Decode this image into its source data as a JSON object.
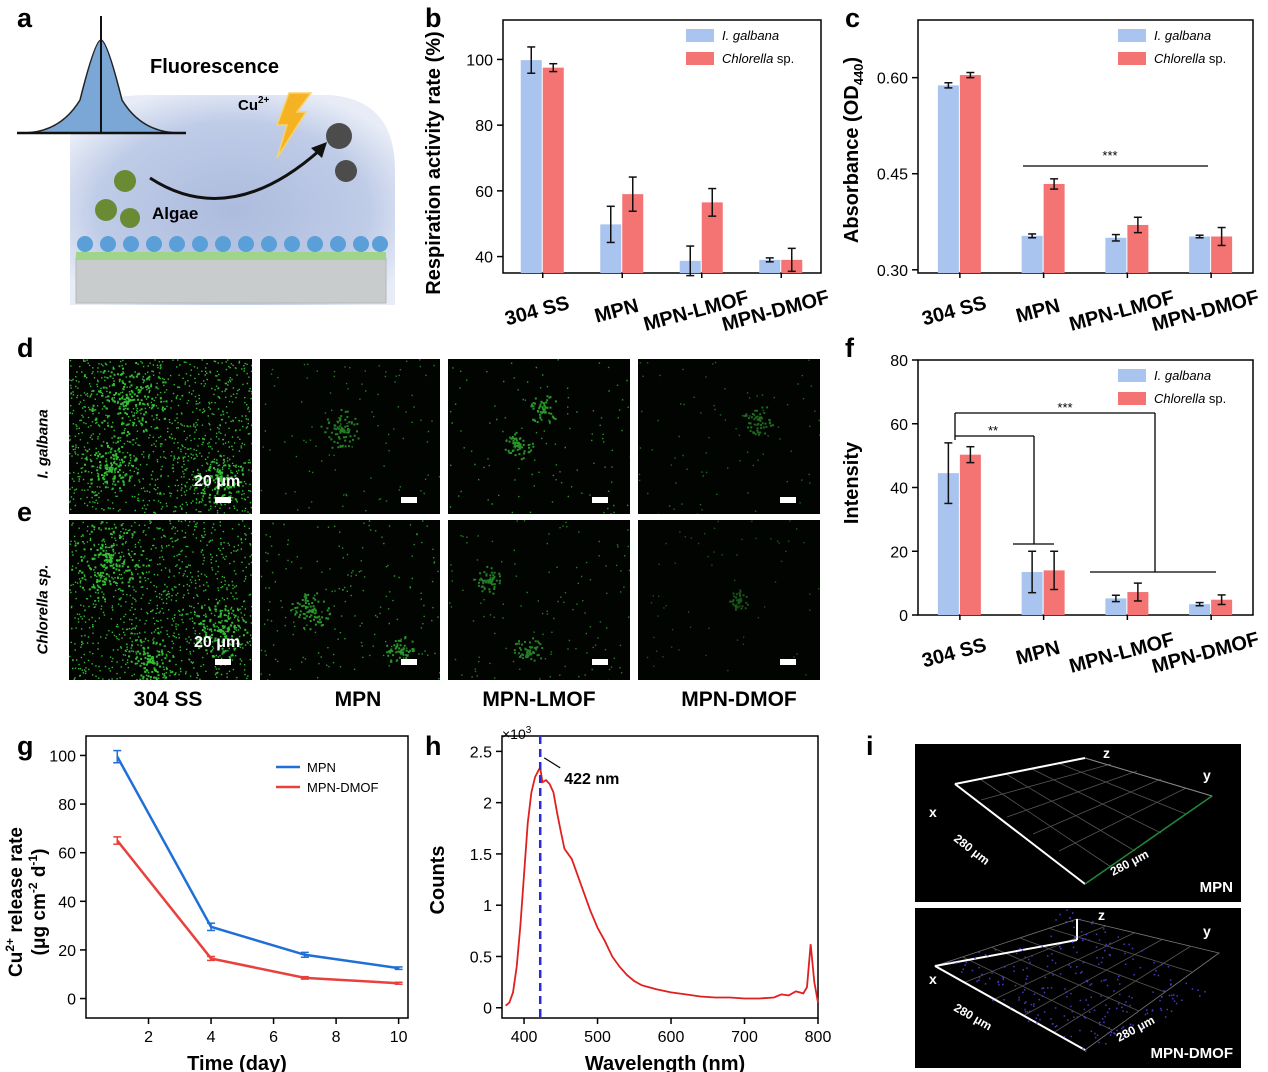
{
  "panel_labels": {
    "a": "a",
    "b": "b",
    "c": "c",
    "d": "d",
    "e": "e",
    "f": "f",
    "g": "g",
    "h": "h",
    "i": "i"
  },
  "schematic": {
    "fluorescence": "Fluorescence",
    "ion_base": "Cu",
    "ion_sup": "2+",
    "algae": "Algae"
  },
  "micrographs": {
    "rows": [
      "I. galbana",
      "Chlorella sp."
    ],
    "columns": [
      "304 SS",
      "MPN",
      "MPN-LMOF",
      "MPN-DMOF"
    ],
    "scale_text": "20 μm"
  },
  "confocal": {
    "top_tag": "MPN",
    "bottom_tag": "MPN-DMOF",
    "axis_z": "z",
    "axis_y": "y",
    "axis_x": "x",
    "dim_left": "280 μm",
    "dim_right": "280 μm"
  },
  "colors": {
    "blue_bar": "#a9c4ee",
    "red_bar": "#f47474",
    "mpn_line": "#1f6fd6",
    "dmof_line": "#e8413d",
    "spectrum": "#e01f1f",
    "marker": "#2b2bd6",
    "green_cells": "#39d23a",
    "purple_cells": "#5a3bd6"
  },
  "chart_data": [
    {
      "id": "b",
      "type": "bar",
      "categories": [
        "304 SS",
        "MPN",
        "MPN-LMOF",
        "MPN-DMOF"
      ],
      "series": [
        {
          "name": "I. galbana",
          "values": [
            99.8,
            49.8,
            38.7,
            39.0
          ],
          "errors": [
            4.0,
            5.5,
            4.5,
            0.6
          ]
        },
        {
          "name": "Chlorella sp.",
          "values": [
            97.5,
            59.0,
            56.5,
            39.0
          ],
          "errors": [
            1.2,
            5.2,
            4.2,
            3.5
          ]
        }
      ],
      "ylabel": "Respiration activity rate (%)",
      "ylim": [
        35,
        112
      ],
      "yticks": [
        40,
        60,
        80,
        100
      ],
      "legend_position": "top-right"
    },
    {
      "id": "c",
      "type": "bar",
      "categories": [
        "304 SS",
        "MPN",
        "MPN-LMOF",
        "MPN-DMOF"
      ],
      "series": [
        {
          "name": "I. galbana",
          "values": [
            0.588,
            0.353,
            0.35,
            0.352
          ],
          "errors": [
            0.004,
            0.003,
            0.005,
            0.002
          ]
        },
        {
          "name": "Chlorella sp.",
          "values": [
            0.604,
            0.434,
            0.37,
            0.352
          ],
          "errors": [
            0.004,
            0.008,
            0.012,
            0.014
          ]
        }
      ],
      "ylabel": "Absorbance (OD",
      "ylabel_sub": "440",
      "ylabel_end": ")",
      "ylim": [
        0.295,
        0.69
      ],
      "yticks": [
        0.3,
        0.45,
        0.6
      ],
      "ytick_labels": [
        "0.30",
        "0.45",
        "0.60"
      ],
      "significance": "***",
      "legend_position": "top-right"
    },
    {
      "id": "f",
      "type": "bar",
      "categories": [
        "304 SS",
        "MPN",
        "MPN-LMOF",
        "MPN-DMOF"
      ],
      "series": [
        {
          "name": "I. galbana",
          "values": [
            44.5,
            13.5,
            5.2,
            3.4
          ],
          "errors": [
            9.5,
            6.5,
            1.0,
            0.5
          ]
        },
        {
          "name": "Chlorella sp.",
          "values": [
            50.3,
            14.0,
            7.2,
            4.8
          ],
          "errors": [
            2.5,
            6.0,
            2.8,
            1.5
          ]
        }
      ],
      "ylabel": "Intensity",
      "ylim": [
        0,
        80
      ],
      "yticks": [
        0,
        20,
        40,
        60,
        80
      ],
      "significance": [
        "**",
        "***"
      ],
      "legend_position": "top-right"
    },
    {
      "id": "g",
      "type": "line",
      "series": [
        {
          "name": "MPN",
          "x": [
            1,
            4,
            7,
            10
          ],
          "y": [
            99.5,
            29.5,
            18.0,
            12.5
          ],
          "errors": [
            2.5,
            1.5,
            1.0,
            0.5
          ]
        },
        {
          "name": "MPN-DMOF",
          "x": [
            1,
            4,
            7,
            10
          ],
          "y": [
            65.0,
            16.5,
            8.5,
            6.3
          ],
          "errors": [
            1.5,
            0.8,
            0.5,
            0.4
          ]
        }
      ],
      "xlabel": "Time (day)",
      "ylabel_line1": "Cu",
      "ylabel_line1_sup": "2+",
      "ylabel_line1_end": " release rate",
      "ylabel_line2": "(μg cm",
      "ylabel_line2_sup": "-2",
      "ylabel_line2_mid": " d",
      "ylabel_line2_sup2": "-1",
      "ylabel_line2_end": ")",
      "xlim": [
        0,
        10.3
      ],
      "ylim": [
        -8,
        108
      ],
      "xticks": [
        2,
        4,
        6,
        8,
        10
      ],
      "yticks": [
        0,
        20,
        40,
        60,
        80,
        100
      ],
      "legend_position": "top-right"
    },
    {
      "id": "h",
      "type": "line",
      "series": [
        {
          "name": "spectrum",
          "x": [
            375,
            380,
            385,
            390,
            395,
            400,
            405,
            410,
            415,
            420,
            422,
            425,
            430,
            435,
            440,
            445,
            450,
            455,
            460,
            465,
            470,
            475,
            480,
            490,
            500,
            510,
            520,
            530,
            540,
            550,
            560,
            570,
            580,
            600,
            620,
            640,
            660,
            680,
            700,
            720,
            740,
            750,
            760,
            770,
            780,
            785,
            790,
            795,
            800
          ],
          "y": [
            0.02,
            0.05,
            0.15,
            0.4,
            0.8,
            1.3,
            1.8,
            2.1,
            2.25,
            2.32,
            2.34,
            2.2,
            2.22,
            2.18,
            2.1,
            1.9,
            1.72,
            1.55,
            1.5,
            1.45,
            1.35,
            1.25,
            1.15,
            0.95,
            0.78,
            0.65,
            0.5,
            0.4,
            0.32,
            0.26,
            0.22,
            0.2,
            0.18,
            0.15,
            0.13,
            0.11,
            0.1,
            0.1,
            0.09,
            0.09,
            0.1,
            0.13,
            0.12,
            0.16,
            0.14,
            0.2,
            0.62,
            0.25,
            0.05
          ]
        }
      ],
      "xlabel": "Wavelength (nm)",
      "ylabel": "Counts",
      "multiplier": "×10",
      "multiplier_sup": "3",
      "peak_label": "422 nm",
      "peak_x": 422,
      "xlim": [
        370,
        800
      ],
      "ylim": [
        -0.1,
        2.65
      ],
      "xticks": [
        400,
        500,
        600,
        700,
        800
      ],
      "yticks": [
        0,
        0.5,
        1,
        1.5,
        2,
        2.5
      ],
      "ytick_labels": [
        "0",
        "0.5",
        "1",
        "1.5",
        "2",
        "2.5"
      ]
    }
  ]
}
